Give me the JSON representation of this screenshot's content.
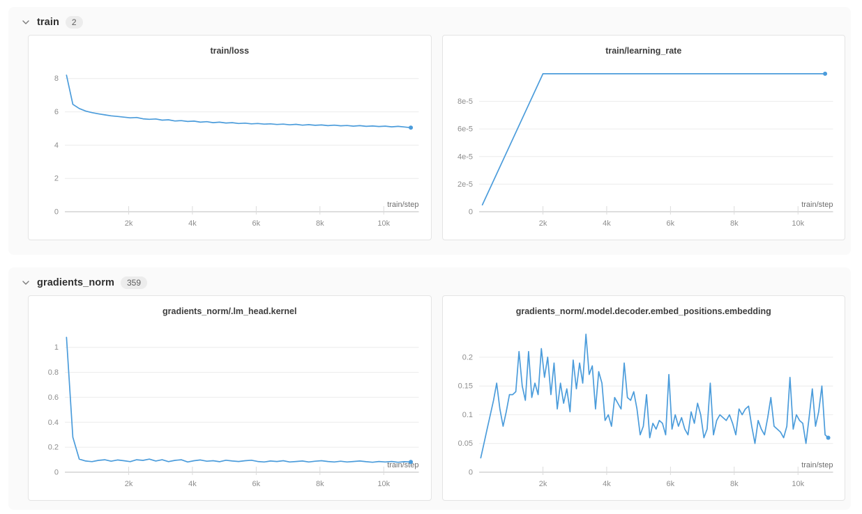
{
  "colors": {
    "line": "#4b9cdb",
    "grid": "#ececec",
    "axis": "#c9c9c9",
    "tick_line": "#dcdcdc",
    "tick_text": "#8d8d8d",
    "xlabel_text": "#6e6e6e",
    "section_bg": "#fafafa",
    "card_border": "#e4e4e4",
    "badge_bg": "#ececec"
  },
  "sections": [
    {
      "label": "train",
      "count": "2"
    },
    {
      "label": "gradients_norm",
      "count": "359"
    }
  ],
  "chart_data": [
    {
      "type": "line",
      "title": "train/loss",
      "xlabel": "train/step",
      "x_start": 50,
      "x_step": 200,
      "xlim": [
        0,
        11100
      ],
      "ylim": [
        0,
        8.7
      ],
      "xticks": [
        2000,
        4000,
        6000,
        8000,
        10000
      ],
      "xtick_labels": [
        "2k",
        "4k",
        "6k",
        "8k",
        "10k"
      ],
      "yticks": [
        0,
        2,
        4,
        6,
        8
      ],
      "ytick_labels": [
        "0",
        "2",
        "4",
        "6",
        "8"
      ],
      "end_dot": true,
      "y": [
        8.2,
        6.45,
        6.2,
        6.05,
        5.95,
        5.88,
        5.82,
        5.76,
        5.72,
        5.68,
        5.64,
        5.66,
        5.58,
        5.55,
        5.57,
        5.5,
        5.52,
        5.45,
        5.47,
        5.42,
        5.44,
        5.38,
        5.41,
        5.35,
        5.38,
        5.33,
        5.35,
        5.3,
        5.32,
        5.28,
        5.3,
        5.26,
        5.28,
        5.24,
        5.26,
        5.22,
        5.25,
        5.2,
        5.23,
        5.19,
        5.21,
        5.17,
        5.2,
        5.16,
        5.18,
        5.14,
        5.17,
        5.13,
        5.15,
        5.12,
        5.14,
        5.1,
        5.13,
        5.09,
        5.05
      ]
    },
    {
      "type": "line",
      "title": "train/learning_rate",
      "xlabel": "train/step",
      "x": [
        100,
        2000,
        10850
      ],
      "xlim": [
        0,
        11100
      ],
      "ylim": [
        0,
        0.000105
      ],
      "xticks": [
        2000,
        4000,
        6000,
        8000,
        10000
      ],
      "xtick_labels": [
        "2k",
        "4k",
        "6k",
        "8k",
        "10k"
      ],
      "yticks": [
        0,
        2e-05,
        4e-05,
        6e-05,
        8e-05
      ],
      "ytick_labels": [
        "0",
        "2e-5",
        "4e-5",
        "6e-5",
        "8e-5"
      ],
      "end_dot": true,
      "y": [
        5e-06,
        0.0001,
        0.0001
      ]
    },
    {
      "type": "line",
      "title": "gradients_norm/.lm_head.kernel",
      "xlabel": "train/step",
      "x_start": 50,
      "x_step": 200,
      "xlim": [
        0,
        11100
      ],
      "ylim": [
        0,
        1.16
      ],
      "xticks": [
        2000,
        4000,
        6000,
        8000,
        10000
      ],
      "xtick_labels": [
        "2k",
        "4k",
        "6k",
        "8k",
        "10k"
      ],
      "yticks": [
        0,
        0.2,
        0.4,
        0.6,
        0.8,
        1
      ],
      "ytick_labels": [
        "0",
        "0.2",
        "0.4",
        "0.6",
        "0.8",
        "1"
      ],
      "end_dot": true,
      "y": [
        1.08,
        0.28,
        0.105,
        0.09,
        0.085,
        0.095,
        0.1,
        0.088,
        0.098,
        0.092,
        0.085,
        0.1,
        0.095,
        0.105,
        0.09,
        0.1,
        0.085,
        0.095,
        0.1,
        0.082,
        0.092,
        0.098,
        0.088,
        0.092,
        0.084,
        0.096,
        0.09,
        0.086,
        0.092,
        0.096,
        0.086,
        0.082,
        0.09,
        0.086,
        0.092,
        0.082,
        0.086,
        0.09,
        0.082,
        0.088,
        0.092,
        0.086,
        0.082,
        0.088,
        0.082,
        0.086,
        0.09,
        0.084,
        0.08,
        0.086,
        0.082,
        0.086,
        0.08,
        0.084,
        0.082
      ]
    },
    {
      "type": "line",
      "title": "gradients_norm/.model.decoder.embed_positions.embedding",
      "xlabel": "train/step",
      "x_start": 50,
      "x_step": 100,
      "xlim": [
        0,
        11100
      ],
      "ylim": [
        0,
        0.252
      ],
      "xticks": [
        2000,
        4000,
        6000,
        8000,
        10000
      ],
      "xtick_labels": [
        "2k",
        "4k",
        "6k",
        "8k",
        "10k"
      ],
      "yticks": [
        0,
        0.05,
        0.1,
        0.15,
        0.2
      ],
      "ytick_labels": [
        "0",
        "0.05",
        "0.1",
        "0.15",
        "0.2"
      ],
      "end_dot": true,
      "y": [
        0.025,
        0.05,
        0.075,
        0.1,
        0.125,
        0.155,
        0.11,
        0.08,
        0.105,
        0.135,
        0.135,
        0.14,
        0.21,
        0.15,
        0.125,
        0.21,
        0.13,
        0.155,
        0.135,
        0.215,
        0.165,
        0.2,
        0.135,
        0.19,
        0.11,
        0.155,
        0.12,
        0.145,
        0.105,
        0.195,
        0.145,
        0.19,
        0.155,
        0.24,
        0.17,
        0.185,
        0.11,
        0.175,
        0.155,
        0.09,
        0.1,
        0.08,
        0.13,
        0.12,
        0.11,
        0.19,
        0.13,
        0.125,
        0.14,
        0.11,
        0.065,
        0.08,
        0.135,
        0.06,
        0.085,
        0.075,
        0.09,
        0.085,
        0.065,
        0.17,
        0.075,
        0.1,
        0.08,
        0.095,
        0.075,
        0.065,
        0.105,
        0.085,
        0.12,
        0.1,
        0.06,
        0.075,
        0.155,
        0.065,
        0.09,
        0.1,
        0.095,
        0.09,
        0.1,
        0.085,
        0.065,
        0.11,
        0.1,
        0.11,
        0.115,
        0.08,
        0.05,
        0.09,
        0.075,
        0.065,
        0.095,
        0.13,
        0.08,
        0.075,
        0.07,
        0.06,
        0.08,
        0.165,
        0.075,
        0.1,
        0.09,
        0.085,
        0.05,
        0.095,
        0.145,
        0.08,
        0.105,
        0.15,
        0.065,
        0.06
      ]
    }
  ]
}
